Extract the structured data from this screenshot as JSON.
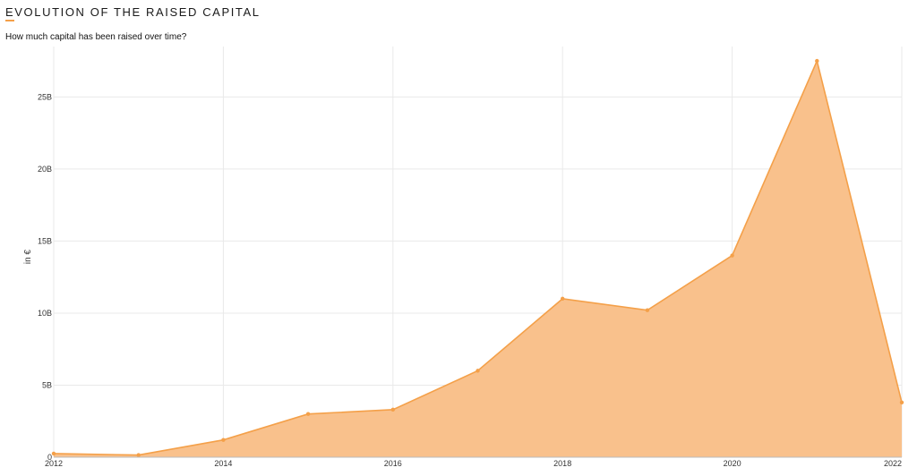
{
  "header": {
    "title": "EVOLUTION OF THE RAISED CAPITAL",
    "subtitle": "How much capital has been raised over time?"
  },
  "colors": {
    "accent": "#f4a049",
    "area": "#f9c18c",
    "line": "#f4a049"
  },
  "chart_data": {
    "type": "area",
    "title": "EVOLUTION OF THE RAISED CAPITAL",
    "subtitle": "How much capital has been raised over time?",
    "xlabel": "",
    "ylabel": "in €",
    "x": [
      2012,
      2013,
      2014,
      2015,
      2016,
      2017,
      2018,
      2019,
      2020,
      2021,
      2022
    ],
    "values": [
      0.25,
      0.15,
      1.2,
      3.0,
      3.3,
      6.0,
      11.0,
      10.2,
      14.0,
      27.5,
      3.8
    ],
    "value_unit": "B",
    "xlim": [
      2012,
      2022
    ],
    "ylim": [
      0,
      28.5
    ],
    "x_ticks": [
      2012,
      2014,
      2016,
      2018,
      2020,
      2022
    ],
    "y_ticks": [
      0,
      5,
      10,
      15,
      20,
      25
    ],
    "y_tick_labels": [
      "0",
      "5B",
      "10B",
      "15B",
      "20B",
      "25B"
    ],
    "grid": true,
    "legend": "none"
  }
}
